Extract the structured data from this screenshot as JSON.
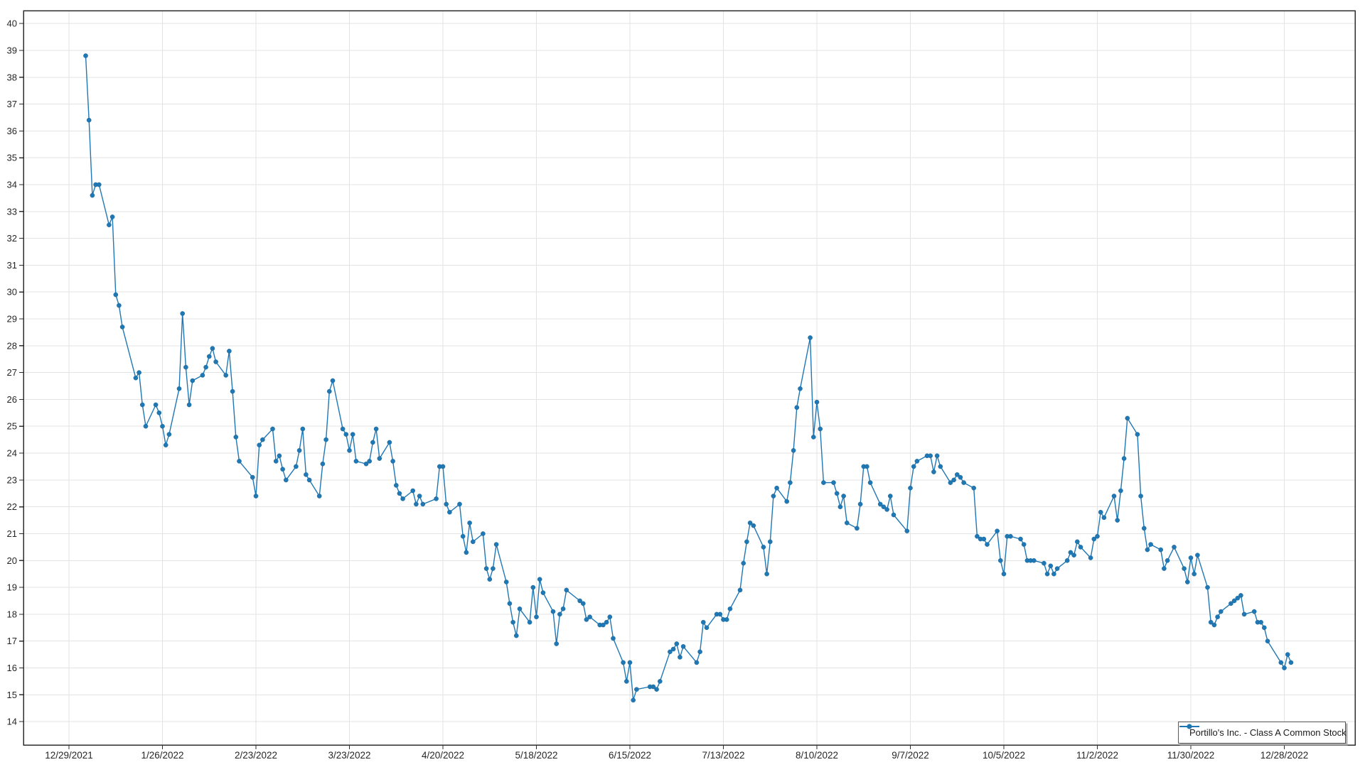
{
  "chart_data": {
    "type": "line",
    "title": "",
    "grid": true,
    "legend_position": "bottom-right",
    "ylim": [
      13.13,
      40.48
    ],
    "y_ticks": [
      14,
      15,
      16,
      17,
      18,
      19,
      20,
      21,
      22,
      23,
      24,
      25,
      26,
      27,
      28,
      29,
      30,
      31,
      32,
      33,
      34,
      35,
      36,
      37,
      38,
      39,
      40
    ],
    "x_ticks": [
      {
        "date": "2021-12-29",
        "label": "12/29/2021"
      },
      {
        "date": "2022-01-26",
        "label": "1/26/2022"
      },
      {
        "date": "2022-02-23",
        "label": "2/23/2022"
      },
      {
        "date": "2022-03-23",
        "label": "3/23/2022"
      },
      {
        "date": "2022-04-20",
        "label": "4/20/2022"
      },
      {
        "date": "2022-05-18",
        "label": "5/18/2022"
      },
      {
        "date": "2022-06-15",
        "label": "6/15/2022"
      },
      {
        "date": "2022-07-13",
        "label": "7/13/2022"
      },
      {
        "date": "2022-08-10",
        "label": "8/10/2022"
      },
      {
        "date": "2022-09-07",
        "label": "9/7/2022"
      },
      {
        "date": "2022-10-05",
        "label": "10/5/2022"
      },
      {
        "date": "2022-11-02",
        "label": "11/2/2022"
      },
      {
        "date": "2022-11-30",
        "label": "11/30/2022"
      },
      {
        "date": "2022-12-28",
        "label": "12/28/2022"
      }
    ],
    "series": [
      {
        "name": "Portillo's Inc. - Class A Common Stock",
        "color": "#1f77b4",
        "points": [
          [
            "2022-01-03",
            38.8
          ],
          [
            "2022-01-04",
            36.4
          ],
          [
            "2022-01-05",
            33.6
          ],
          [
            "2022-01-06",
            34.0
          ],
          [
            "2022-01-07",
            34.0
          ],
          [
            "2022-01-10",
            32.5
          ],
          [
            "2022-01-11",
            32.8
          ],
          [
            "2022-01-12",
            29.9
          ],
          [
            "2022-01-13",
            29.5
          ],
          [
            "2022-01-14",
            28.7
          ],
          [
            "2022-01-18",
            26.8
          ],
          [
            "2022-01-19",
            27.0
          ],
          [
            "2022-01-20",
            25.8
          ],
          [
            "2022-01-21",
            25.0
          ],
          [
            "2022-01-24",
            25.8
          ],
          [
            "2022-01-25",
            25.5
          ],
          [
            "2022-01-26",
            25.0
          ],
          [
            "2022-01-27",
            24.3
          ],
          [
            "2022-01-28",
            24.7
          ],
          [
            "2022-01-31",
            26.4
          ],
          [
            "2022-02-01",
            29.2
          ],
          [
            "2022-02-02",
            27.2
          ],
          [
            "2022-02-03",
            25.8
          ],
          [
            "2022-02-04",
            26.7
          ],
          [
            "2022-02-07",
            26.9
          ],
          [
            "2022-02-08",
            27.2
          ],
          [
            "2022-02-09",
            27.6
          ],
          [
            "2022-02-10",
            27.9
          ],
          [
            "2022-02-11",
            27.4
          ],
          [
            "2022-02-14",
            26.9
          ],
          [
            "2022-02-15",
            27.8
          ],
          [
            "2022-02-16",
            26.3
          ],
          [
            "2022-02-17",
            24.6
          ],
          [
            "2022-02-18",
            23.7
          ],
          [
            "2022-02-22",
            23.1
          ],
          [
            "2022-02-23",
            22.4
          ],
          [
            "2022-02-24",
            24.3
          ],
          [
            "2022-02-25",
            24.5
          ],
          [
            "2022-02-28",
            24.9
          ],
          [
            "2022-03-01",
            23.7
          ],
          [
            "2022-03-02",
            23.9
          ],
          [
            "2022-03-03",
            23.4
          ],
          [
            "2022-03-04",
            23.0
          ],
          [
            "2022-03-07",
            23.5
          ],
          [
            "2022-03-08",
            24.1
          ],
          [
            "2022-03-09",
            24.9
          ],
          [
            "2022-03-10",
            23.2
          ],
          [
            "2022-03-11",
            23.0
          ],
          [
            "2022-03-14",
            22.4
          ],
          [
            "2022-03-15",
            23.6
          ],
          [
            "2022-03-16",
            24.5
          ],
          [
            "2022-03-17",
            26.3
          ],
          [
            "2022-03-18",
            26.7
          ],
          [
            "2022-03-21",
            24.9
          ],
          [
            "2022-03-22",
            24.7
          ],
          [
            "2022-03-23",
            24.1
          ],
          [
            "2022-03-24",
            24.7
          ],
          [
            "2022-03-25",
            23.7
          ],
          [
            "2022-03-28",
            23.6
          ],
          [
            "2022-03-29",
            23.7
          ],
          [
            "2022-03-30",
            24.4
          ],
          [
            "2022-03-31",
            24.9
          ],
          [
            "2022-04-01",
            23.8
          ],
          [
            "2022-04-04",
            24.4
          ],
          [
            "2022-04-05",
            23.7
          ],
          [
            "2022-04-06",
            22.8
          ],
          [
            "2022-04-07",
            22.5
          ],
          [
            "2022-04-08",
            22.3
          ],
          [
            "2022-04-11",
            22.6
          ],
          [
            "2022-04-12",
            22.1
          ],
          [
            "2022-04-13",
            22.4
          ],
          [
            "2022-04-14",
            22.1
          ],
          [
            "2022-04-18",
            22.3
          ],
          [
            "2022-04-19",
            23.5
          ],
          [
            "2022-04-20",
            23.5
          ],
          [
            "2022-04-21",
            22.1
          ],
          [
            "2022-04-22",
            21.8
          ],
          [
            "2022-04-25",
            22.1
          ],
          [
            "2022-04-26",
            20.9
          ],
          [
            "2022-04-27",
            20.3
          ],
          [
            "2022-04-28",
            21.4
          ],
          [
            "2022-04-29",
            20.7
          ],
          [
            "2022-05-02",
            21.0
          ],
          [
            "2022-05-03",
            19.7
          ],
          [
            "2022-05-04",
            19.3
          ],
          [
            "2022-05-05",
            19.7
          ],
          [
            "2022-05-06",
            20.6
          ],
          [
            "2022-05-09",
            19.2
          ],
          [
            "2022-05-10",
            18.4
          ],
          [
            "2022-05-11",
            17.7
          ],
          [
            "2022-05-12",
            17.2
          ],
          [
            "2022-05-13",
            18.2
          ],
          [
            "2022-05-16",
            17.7
          ],
          [
            "2022-05-17",
            19.0
          ],
          [
            "2022-05-18",
            17.9
          ],
          [
            "2022-05-19",
            19.3
          ],
          [
            "2022-05-20",
            18.8
          ],
          [
            "2022-05-23",
            18.1
          ],
          [
            "2022-05-24",
            16.9
          ],
          [
            "2022-05-25",
            18.0
          ],
          [
            "2022-05-26",
            18.2
          ],
          [
            "2022-05-27",
            18.9
          ],
          [
            "2022-05-31",
            18.5
          ],
          [
            "2022-06-01",
            18.4
          ],
          [
            "2022-06-02",
            17.8
          ],
          [
            "2022-06-03",
            17.9
          ],
          [
            "2022-06-06",
            17.6
          ],
          [
            "2022-06-07",
            17.6
          ],
          [
            "2022-06-08",
            17.7
          ],
          [
            "2022-06-09",
            17.9
          ],
          [
            "2022-06-10",
            17.1
          ],
          [
            "2022-06-13",
            16.2
          ],
          [
            "2022-06-14",
            15.5
          ],
          [
            "2022-06-15",
            16.2
          ],
          [
            "2022-06-16",
            14.8
          ],
          [
            "2022-06-17",
            15.2
          ],
          [
            "2022-06-21",
            15.3
          ],
          [
            "2022-06-22",
            15.3
          ],
          [
            "2022-06-23",
            15.2
          ],
          [
            "2022-06-24",
            15.5
          ],
          [
            "2022-06-27",
            16.6
          ],
          [
            "2022-06-28",
            16.7
          ],
          [
            "2022-06-29",
            16.9
          ],
          [
            "2022-06-30",
            16.4
          ],
          [
            "2022-07-01",
            16.8
          ],
          [
            "2022-07-05",
            16.2
          ],
          [
            "2022-07-06",
            16.6
          ],
          [
            "2022-07-07",
            17.7
          ],
          [
            "2022-07-08",
            17.5
          ],
          [
            "2022-07-11",
            18.0
          ],
          [
            "2022-07-12",
            18.0
          ],
          [
            "2022-07-13",
            17.8
          ],
          [
            "2022-07-14",
            17.8
          ],
          [
            "2022-07-15",
            18.2
          ],
          [
            "2022-07-18",
            18.9
          ],
          [
            "2022-07-19",
            19.9
          ],
          [
            "2022-07-20",
            20.7
          ],
          [
            "2022-07-21",
            21.4
          ],
          [
            "2022-07-22",
            21.3
          ],
          [
            "2022-07-25",
            20.5
          ],
          [
            "2022-07-26",
            19.5
          ],
          [
            "2022-07-27",
            20.7
          ],
          [
            "2022-07-28",
            22.4
          ],
          [
            "2022-07-29",
            22.7
          ],
          [
            "2022-08-01",
            22.2
          ],
          [
            "2022-08-02",
            22.9
          ],
          [
            "2022-08-03",
            24.1
          ],
          [
            "2022-08-04",
            25.7
          ],
          [
            "2022-08-05",
            26.4
          ],
          [
            "2022-08-08",
            28.3
          ],
          [
            "2022-08-09",
            24.6
          ],
          [
            "2022-08-10",
            25.9
          ],
          [
            "2022-08-11",
            24.9
          ],
          [
            "2022-08-12",
            22.9
          ],
          [
            "2022-08-15",
            22.9
          ],
          [
            "2022-08-16",
            22.5
          ],
          [
            "2022-08-17",
            22.0
          ],
          [
            "2022-08-18",
            22.4
          ],
          [
            "2022-08-19",
            21.4
          ],
          [
            "2022-08-22",
            21.2
          ],
          [
            "2022-08-23",
            22.1
          ],
          [
            "2022-08-24",
            23.5
          ],
          [
            "2022-08-25",
            23.5
          ],
          [
            "2022-08-26",
            22.9
          ],
          [
            "2022-08-29",
            22.1
          ],
          [
            "2022-08-30",
            22.0
          ],
          [
            "2022-08-31",
            21.9
          ],
          [
            "2022-09-01",
            22.4
          ],
          [
            "2022-09-02",
            21.7
          ],
          [
            "2022-09-06",
            21.1
          ],
          [
            "2022-09-07",
            22.7
          ],
          [
            "2022-09-08",
            23.5
          ],
          [
            "2022-09-09",
            23.7
          ],
          [
            "2022-09-12",
            23.9
          ],
          [
            "2022-09-13",
            23.9
          ],
          [
            "2022-09-14",
            23.3
          ],
          [
            "2022-09-15",
            23.9
          ],
          [
            "2022-09-16",
            23.5
          ],
          [
            "2022-09-19",
            22.9
          ],
          [
            "2022-09-20",
            23.0
          ],
          [
            "2022-09-21",
            23.2
          ],
          [
            "2022-09-22",
            23.1
          ],
          [
            "2022-09-23",
            22.9
          ],
          [
            "2022-09-26",
            22.7
          ],
          [
            "2022-09-27",
            20.9
          ],
          [
            "2022-09-28",
            20.8
          ],
          [
            "2022-09-29",
            20.8
          ],
          [
            "2022-09-30",
            20.6
          ],
          [
            "2022-10-03",
            21.1
          ],
          [
            "2022-10-04",
            20.0
          ],
          [
            "2022-10-05",
            19.5
          ],
          [
            "2022-10-06",
            20.9
          ],
          [
            "2022-10-07",
            20.9
          ],
          [
            "2022-10-10",
            20.8
          ],
          [
            "2022-10-11",
            20.6
          ],
          [
            "2022-10-12",
            20.0
          ],
          [
            "2022-10-13",
            20.0
          ],
          [
            "2022-10-14",
            20.0
          ],
          [
            "2022-10-17",
            19.9
          ],
          [
            "2022-10-18",
            19.5
          ],
          [
            "2022-10-19",
            19.8
          ],
          [
            "2022-10-20",
            19.5
          ],
          [
            "2022-10-21",
            19.7
          ],
          [
            "2022-10-24",
            20.0
          ],
          [
            "2022-10-25",
            20.3
          ],
          [
            "2022-10-26",
            20.2
          ],
          [
            "2022-10-27",
            20.7
          ],
          [
            "2022-10-28",
            20.5
          ],
          [
            "2022-10-31",
            20.1
          ],
          [
            "2022-11-01",
            20.8
          ],
          [
            "2022-11-02",
            20.9
          ],
          [
            "2022-11-03",
            21.8
          ],
          [
            "2022-11-04",
            21.6
          ],
          [
            "2022-11-07",
            22.4
          ],
          [
            "2022-11-08",
            21.5
          ],
          [
            "2022-11-09",
            22.6
          ],
          [
            "2022-11-10",
            23.8
          ],
          [
            "2022-11-11",
            25.3
          ],
          [
            "2022-11-14",
            24.7
          ],
          [
            "2022-11-15",
            22.4
          ],
          [
            "2022-11-16",
            21.2
          ],
          [
            "2022-11-17",
            20.4
          ],
          [
            "2022-11-18",
            20.6
          ],
          [
            "2022-11-21",
            20.4
          ],
          [
            "2022-11-22",
            19.7
          ],
          [
            "2022-11-23",
            20.0
          ],
          [
            "2022-11-25",
            20.5
          ],
          [
            "2022-11-28",
            19.7
          ],
          [
            "2022-11-29",
            19.2
          ],
          [
            "2022-11-30",
            20.1
          ],
          [
            "2022-12-01",
            19.5
          ],
          [
            "2022-12-02",
            20.2
          ],
          [
            "2022-12-05",
            19.0
          ],
          [
            "2022-12-06",
            17.7
          ],
          [
            "2022-12-07",
            17.6
          ],
          [
            "2022-12-08",
            17.9
          ],
          [
            "2022-12-09",
            18.1
          ],
          [
            "2022-12-12",
            18.4
          ],
          [
            "2022-12-13",
            18.5
          ],
          [
            "2022-12-14",
            18.6
          ],
          [
            "2022-12-15",
            18.7
          ],
          [
            "2022-12-16",
            18.0
          ],
          [
            "2022-12-19",
            18.1
          ],
          [
            "2022-12-20",
            17.7
          ],
          [
            "2022-12-21",
            17.7
          ],
          [
            "2022-12-22",
            17.5
          ],
          [
            "2022-12-23",
            17.0
          ],
          [
            "2022-12-27",
            16.2
          ],
          [
            "2022-12-28",
            16.0
          ],
          [
            "2022-12-29",
            16.5
          ],
          [
            "2022-12-30",
            16.2
          ]
        ]
      }
    ]
  },
  "colors": {
    "line": "#1f77b4",
    "marker": "#1f77b4",
    "grid": "#e3e3e3",
    "axis": "#2d2d2d",
    "text": "#262626",
    "background": "#ffffff",
    "legend_border": "#5a5a5a",
    "legend_shadow": "#adadad"
  },
  "legend": {
    "label": "Portillo's Inc. - Class A Common Stock"
  }
}
